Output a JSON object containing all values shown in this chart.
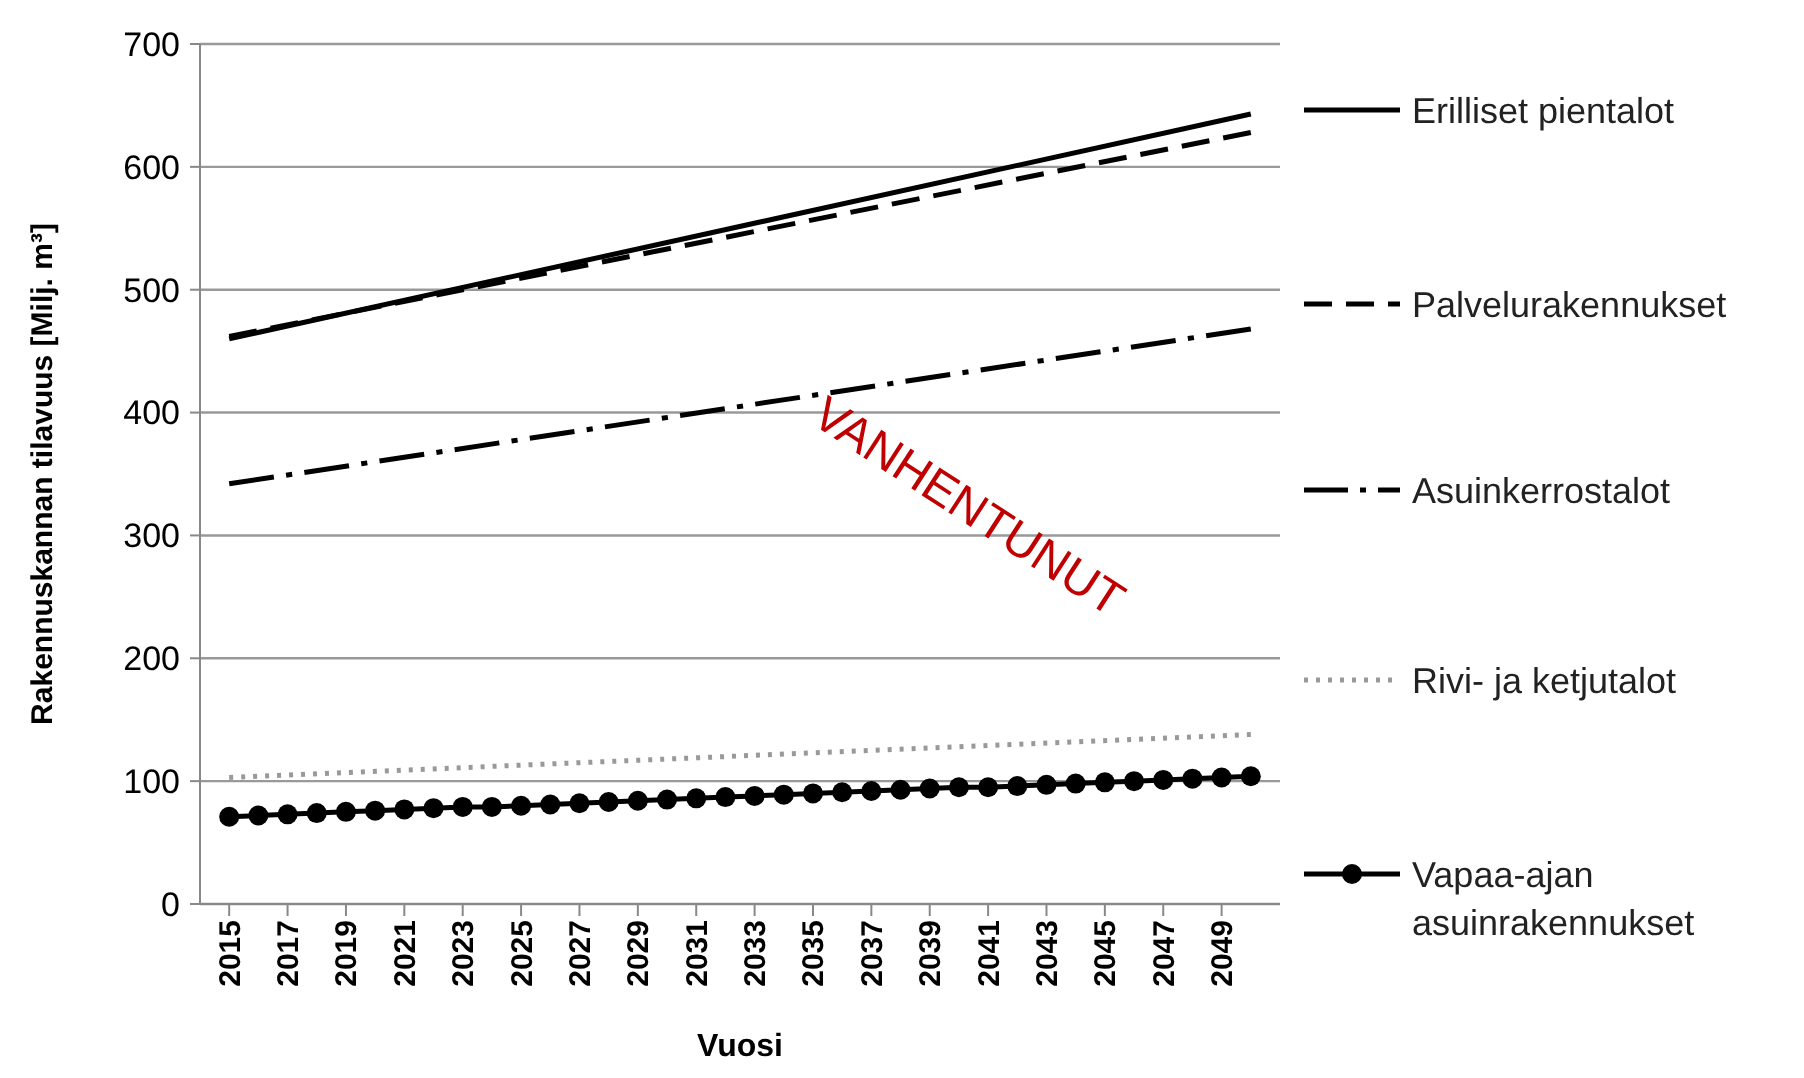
{
  "chart_data": {
    "type": "line",
    "xlabel": "Vuosi",
    "ylabel": "Rakennuskannan tilavuus [Milj. m³]",
    "xlim": [
      2014,
      2051
    ],
    "ylim": [
      0,
      700
    ],
    "xticks": [
      2015,
      2017,
      2019,
      2021,
      2023,
      2025,
      2027,
      2029,
      2031,
      2033,
      2035,
      2037,
      2039,
      2041,
      2043,
      2045,
      2047,
      2049
    ],
    "yticks": [
      0,
      100,
      200,
      300,
      400,
      500,
      600,
      700
    ],
    "grid": "y",
    "legend": "right",
    "annotations": [
      "VANHENTUNUT"
    ],
    "series": [
      {
        "name": "Erilliset pientalot",
        "color": "#000000",
        "line_style": "solid",
        "x": [
          2015,
          2050
        ],
        "values": [
          460,
          643
        ]
      },
      {
        "name": "Palvelurakennukset",
        "color": "#000000",
        "line_style": "dashed",
        "x": [
          2015,
          2050
        ],
        "values": [
          462,
          628
        ]
      },
      {
        "name": "Asuinkerrostalot",
        "color": "#000000",
        "line_style": "dashdot",
        "x": [
          2015,
          2050
        ],
        "values": [
          342,
          468
        ]
      },
      {
        "name": "Rivi- ja ketjutalot",
        "color": "#999999",
        "line_style": "dotted",
        "x": [
          2015,
          2050
        ],
        "values": [
          103,
          138
        ]
      },
      {
        "name": "Vapaa-ajan asuinrakennukset",
        "color": "#000000",
        "line_style": "solid",
        "marker": "circle",
        "x": [
          2015,
          2016,
          2017,
          2018,
          2019,
          2020,
          2021,
          2022,
          2023,
          2024,
          2025,
          2026,
          2027,
          2028,
          2029,
          2030,
          2031,
          2032,
          2033,
          2034,
          2035,
          2036,
          2037,
          2038,
          2039,
          2040,
          2041,
          2042,
          2043,
          2044,
          2045,
          2046,
          2047,
          2048,
          2049,
          2050
        ],
        "values": [
          71,
          72,
          73,
          74,
          75,
          76,
          77,
          78,
          79,
          79,
          80,
          81,
          82,
          83,
          84,
          85,
          86,
          87,
          88,
          89,
          90,
          91,
          92,
          93,
          94,
          95,
          95,
          96,
          97,
          98,
          99,
          100,
          101,
          102,
          103,
          104
        ]
      }
    ]
  }
}
